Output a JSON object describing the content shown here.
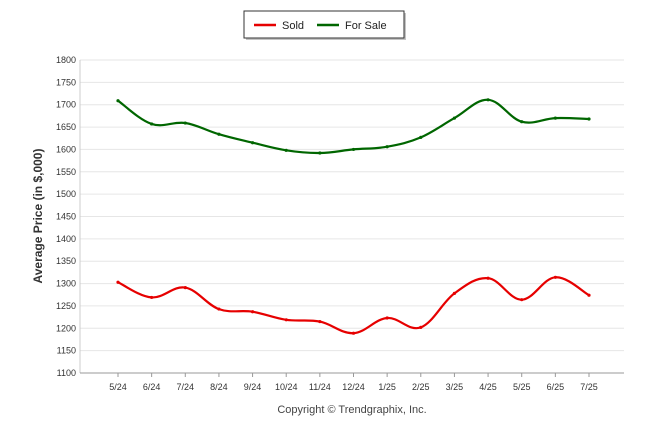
{
  "chart_data": {
    "type": "line",
    "categories": [
      "5/24",
      "6/24",
      "7/24",
      "8/24",
      "9/24",
      "10/24",
      "11/24",
      "12/24",
      "1/25",
      "2/25",
      "3/25",
      "4/25",
      "5/25",
      "6/25",
      "7/25"
    ],
    "series": [
      {
        "name": "Sold",
        "color": "#e60000",
        "values": [
          1303,
          1269,
          1291,
          1243,
          1237,
          1219,
          1215,
          1189,
          1223,
          1202,
          1278,
          1312,
          1264,
          1314,
          1274
        ]
      },
      {
        "name": "For Sale",
        "color": "#006600",
        "values": [
          1709,
          1657,
          1659,
          1634,
          1615,
          1598,
          1592,
          1600,
          1606,
          1627,
          1670,
          1711,
          1662,
          1670,
          1668
        ]
      }
    ],
    "title": "",
    "xlabel": "",
    "ylabel": "Average Price (in $,000)",
    "ylim": [
      1100,
      1800
    ],
    "yticks": [
      1100,
      1150,
      1200,
      1250,
      1300,
      1350,
      1400,
      1450,
      1500,
      1550,
      1600,
      1650,
      1700,
      1750,
      1800
    ],
    "grid": true,
    "legend_position": "top-center"
  },
  "footer": {
    "copyright": "Copyright © Trendgraphix, Inc."
  }
}
